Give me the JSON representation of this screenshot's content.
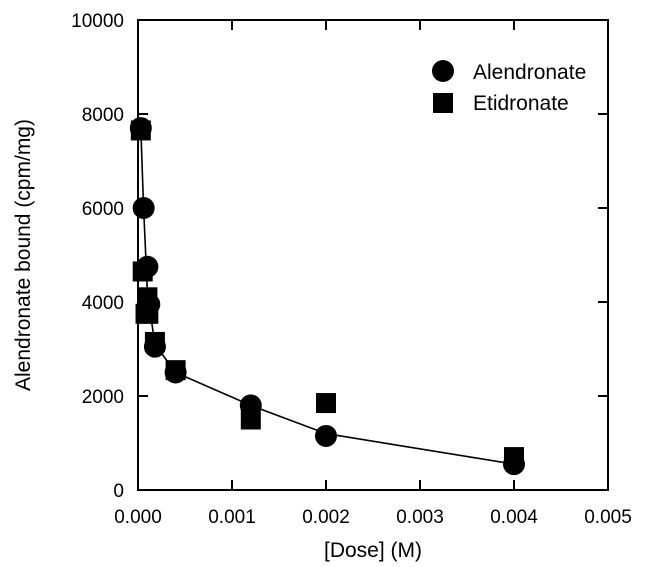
{
  "chart_data": {
    "type": "scatter",
    "title": "",
    "xlabel": "[Dose] (M)",
    "ylabel": "Alendronate bound (cpm/mg)",
    "xlim": [
      0,
      0.005
    ],
    "ylim": [
      0,
      10000
    ],
    "x_ticks": [
      0,
      0.001,
      0.002,
      0.003,
      0.004,
      0.005
    ],
    "x_tick_labels": [
      "0.000",
      "0.001",
      "0.002",
      "0.003",
      "0.004",
      "0.005"
    ],
    "y_ticks": [
      0,
      2000,
      4000,
      6000,
      8000,
      10000
    ],
    "y_tick_labels": [
      "0",
      "2000",
      "4000",
      "6000",
      "8000",
      "10000"
    ],
    "grid": false,
    "legend_position": "top-right",
    "series": [
      {
        "name": "Alendronate",
        "marker": "circle",
        "color": "#000000",
        "x": [
          3e-05,
          6e-05,
          0.0001,
          0.00012,
          0.00018,
          0.0004,
          0.0012,
          0.002,
          0.004
        ],
        "y": [
          7700,
          6000,
          4750,
          3950,
          3050,
          2500,
          1800,
          1150,
          550
        ]
      },
      {
        "name": "Etidronate",
        "marker": "square",
        "color": "#000000",
        "x": [
          3e-05,
          5e-05,
          8e-05,
          0.0001,
          0.00011,
          0.00018,
          0.0004,
          0.0012,
          0.002,
          0.004
        ],
        "y": [
          7650,
          4650,
          3750,
          4100,
          3750,
          3150,
          2550,
          1500,
          1850,
          700
        ]
      }
    ],
    "fit_curve": {
      "x": [
        3e-05,
        6e-05,
        0.0001,
        0.00018,
        0.0004,
        0.0012,
        0.002,
        0.004
      ],
      "y": [
        7700,
        6000,
        4200,
        3100,
        2500,
        1800,
        1200,
        550
      ]
    }
  }
}
